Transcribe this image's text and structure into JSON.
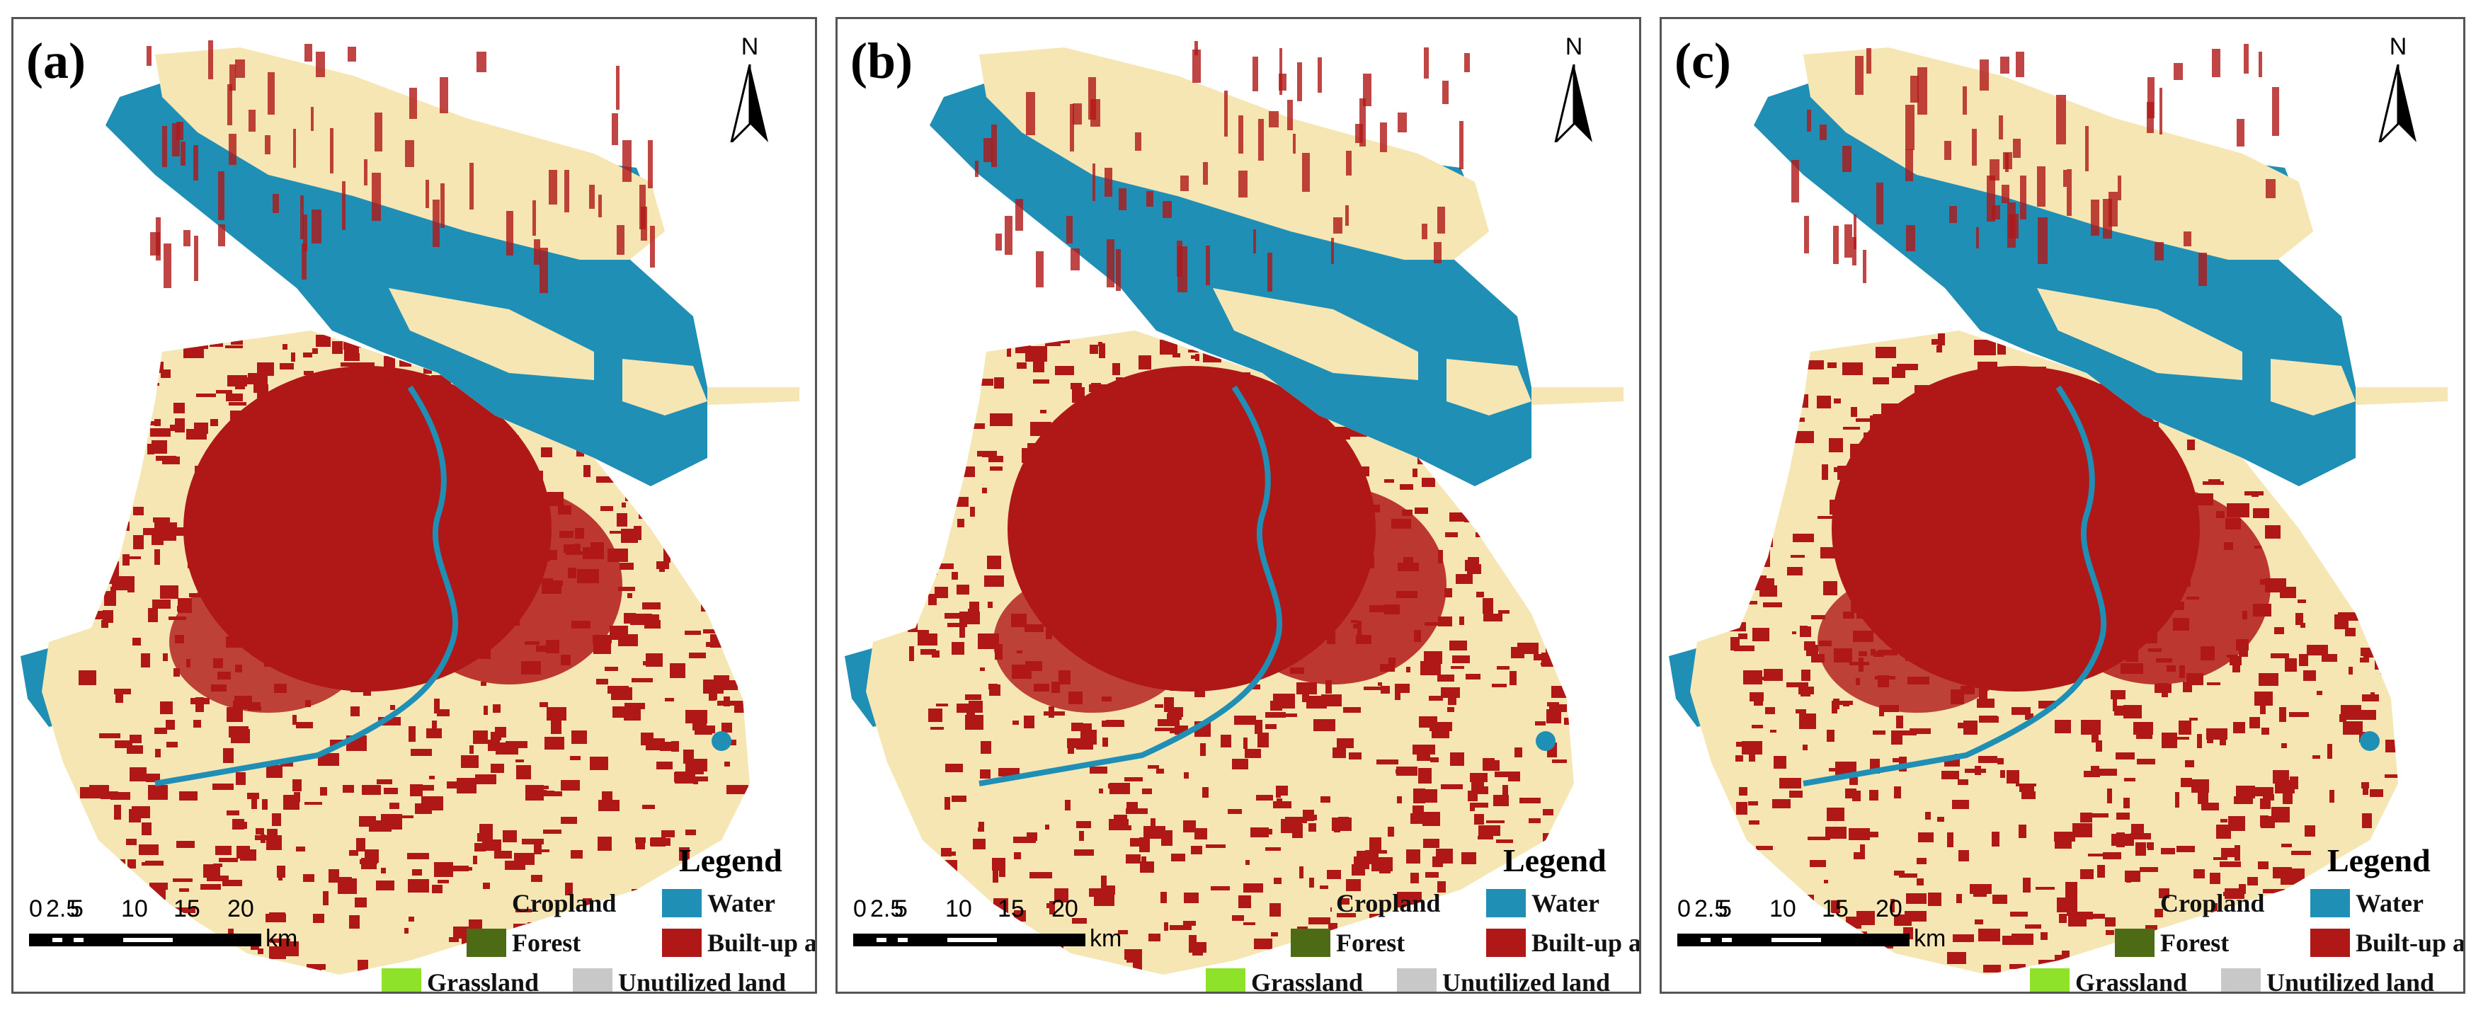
{
  "panels": [
    {
      "label": "(a)"
    },
    {
      "label": "(b)"
    },
    {
      "label": "(c)"
    }
  ],
  "north_arrow": {
    "label": "N"
  },
  "legend": {
    "title": "Legend",
    "items": [
      {
        "label": "Cropland",
        "color": "#f5e6b3"
      },
      {
        "label": "Water",
        "color": "#1f8fb5"
      },
      {
        "label": "Forest",
        "color": "#4c6b14"
      },
      {
        "label": "Built-up area",
        "color": "#b01818"
      },
      {
        "label": "Grassland",
        "color": "#8fe22a"
      },
      {
        "label": "Unutilized land",
        "color": "#c8c8c8"
      }
    ]
  },
  "scale_bar": {
    "ticks": [
      "0",
      "2.5",
      "5",
      "10",
      "15",
      "20"
    ],
    "unit": "km"
  },
  "colors": {
    "cropland": "#f5e6b3",
    "water": "#1f8fb5",
    "built_up": "#b01818",
    "grassland": "#8fe22a"
  }
}
